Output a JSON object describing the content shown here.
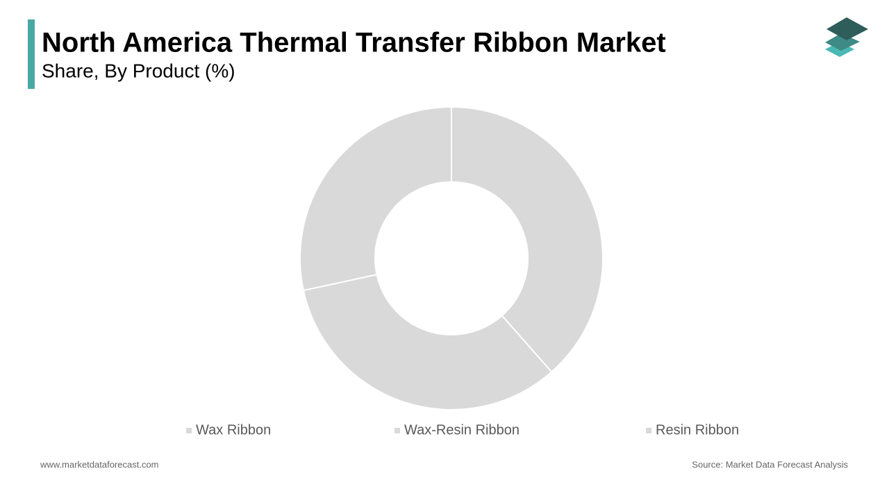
{
  "chart_data": {
    "type": "donut",
    "title": "North America Thermal Transfer Ribbon Market",
    "subtitle": "Share, By Product (%)",
    "categories": [
      "Wax Ribbon",
      "Wax-Resin Ribbon",
      "Resin Ribbon"
    ],
    "values": [
      38.5,
      33.1,
      28.4
    ],
    "colors": [
      "#d9d9d9",
      "#d9d9d9",
      "#d9d9d9"
    ],
    "legend": "bottom"
  },
  "footer": {
    "website": "www.marketdataforecast.com",
    "source": "Source: Market Data Forecast Analysis"
  }
}
